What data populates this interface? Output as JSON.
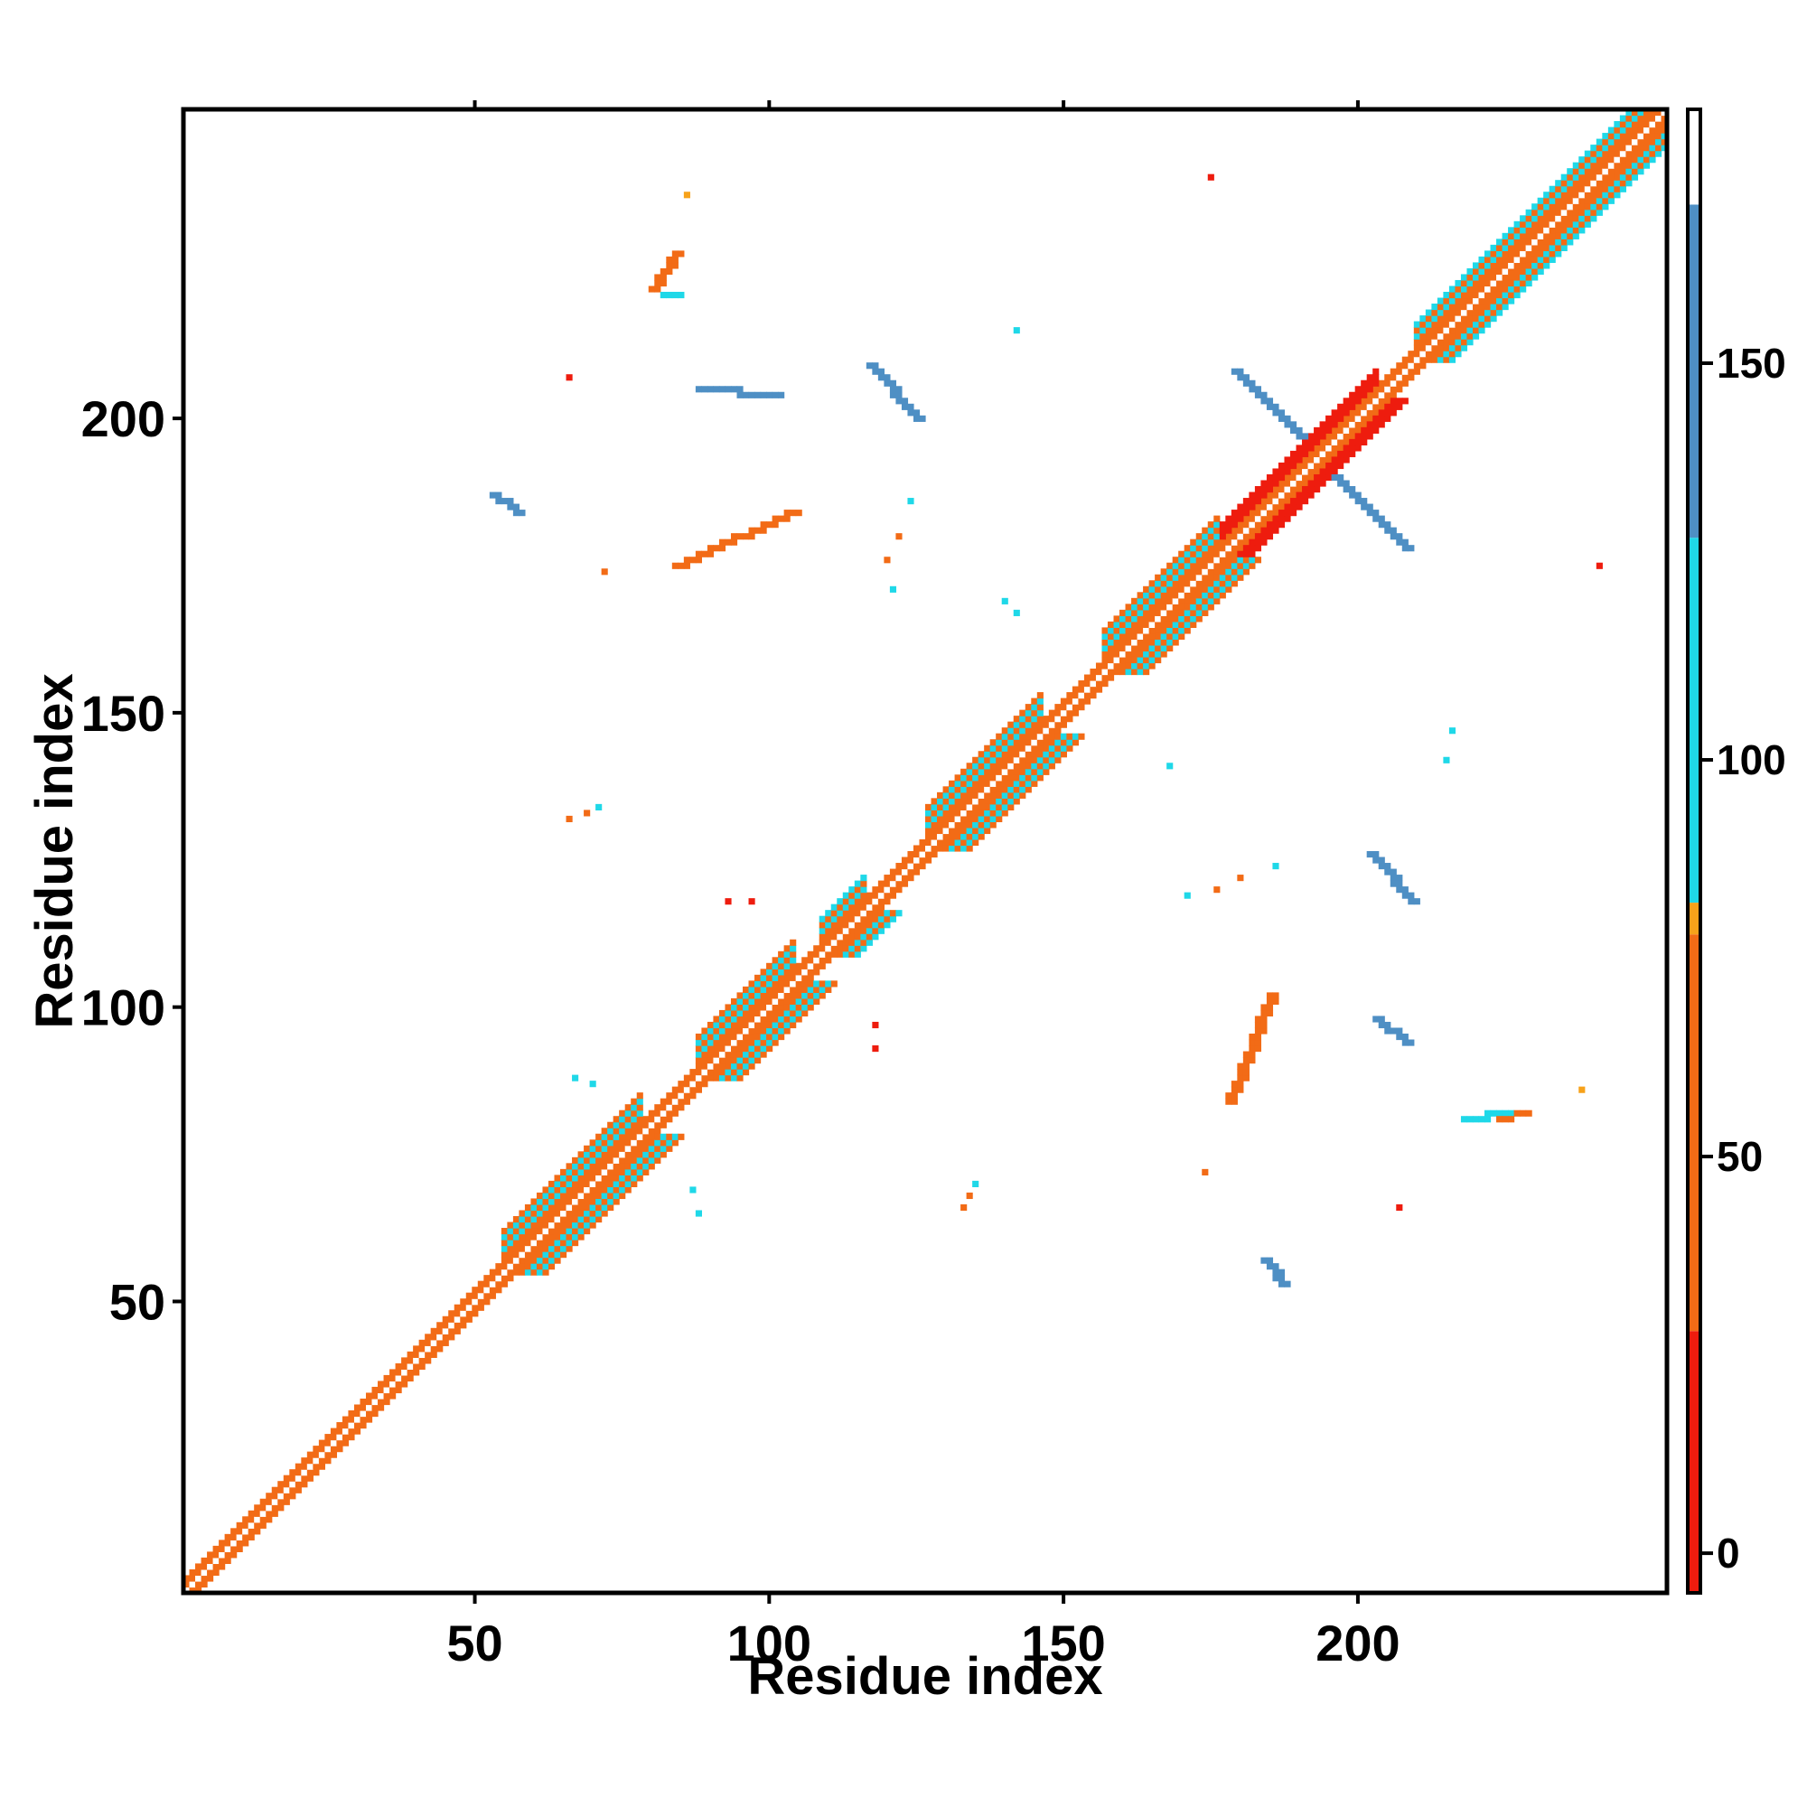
{
  "chart_data": {
    "type": "heatmap",
    "title": "",
    "xlabel": "Residue index",
    "ylabel": "Residue index",
    "x_range": [
      1,
      252
    ],
    "y_range": [
      1,
      252
    ],
    "x_ticks": [
      50,
      100,
      150,
      200
    ],
    "y_ticks": [
      50,
      100,
      150,
      200
    ],
    "grid": false,
    "symmetric": true,
    "colorbar": {
      "range": [
        -5,
        182
      ],
      "ticks": [
        0,
        50,
        100,
        150
      ],
      "bins": [
        {
          "from": -5,
          "to": 28,
          "color": "#ee1c0e"
        },
        {
          "from": 28,
          "to": 78,
          "color": "#f26b16"
        },
        {
          "from": 78,
          "to": 82,
          "color": "#f7a21a"
        },
        {
          "from": 82,
          "to": 128,
          "color": "#1fd8e8"
        },
        {
          "from": 128,
          "to": 170,
          "color": "#4e8fc4"
        },
        {
          "from": 170,
          "to": 182,
          "color": "#ffffff"
        }
      ]
    },
    "diagonal": {
      "from": 1,
      "to": 252,
      "value": 60
    },
    "near_diagonal_bands": [
      {
        "from": 55,
        "to": 78,
        "value": 95,
        "width": 4
      },
      {
        "from": 88,
        "to": 104,
        "value": 95,
        "width": 4
      },
      {
        "from": 109,
        "to": 116,
        "value": 110,
        "width": 3
      },
      {
        "from": 127,
        "to": 146,
        "value": 95,
        "width": 4
      },
      {
        "from": 157,
        "to": 176,
        "value": 95,
        "width": 4
      },
      {
        "from": 176,
        "to": 203,
        "value": 10,
        "width": 2
      },
      {
        "from": 210,
        "to": 250,
        "value": 100,
        "width": 3
      }
    ],
    "contacts": [
      {
        "x0": 179,
        "y0": 208,
        "x1": 208,
        "y1": 178,
        "value": 150,
        "width": 2
      },
      {
        "x0": 117,
        "y0": 209,
        "x1": 125,
        "y1": 200,
        "value": 150,
        "width": 2
      },
      {
        "x0": 202,
        "y0": 126,
        "x1": 209,
        "y1": 118,
        "value": 150,
        "width": 2
      },
      {
        "x0": 84,
        "y0": 175,
        "x1": 104,
        "y1": 184,
        "value": 40,
        "width": 2
      },
      {
        "x0": 178,
        "y0": 84,
        "x1": 185,
        "y1": 102,
        "value": 40,
        "width": 2
      },
      {
        "x0": 53,
        "y0": 187,
        "x1": 57,
        "y1": 184,
        "value": 150,
        "width": 2
      },
      {
        "x0": 184,
        "y0": 57,
        "x1": 187,
        "y1": 53,
        "value": 150,
        "width": 2
      },
      {
        "x0": 80,
        "y0": 222,
        "x1": 84,
        "y1": 228,
        "value": 40,
        "width": 2
      },
      {
        "x0": 82,
        "y0": 221,
        "x1": 84,
        "y1": 221,
        "value": 100,
        "width": 2
      },
      {
        "x0": 88,
        "y0": 205,
        "x1": 101,
        "y1": 204,
        "value": 140,
        "width": 2
      },
      {
        "x0": 218,
        "y0": 81,
        "x1": 225,
        "y1": 82,
        "value": 100,
        "width": 2
      },
      {
        "x0": 224,
        "y0": 81,
        "x1": 228,
        "y1": 82,
        "value": 40,
        "width": 2
      },
      {
        "x0": 203,
        "y0": 98,
        "x1": 208,
        "y1": 94,
        "value": 140,
        "width": 2
      },
      {
        "x0": 1,
        "y0": 1,
        "x1": 1,
        "y1": 1,
        "value": 10,
        "width": 1
      }
    ],
    "scatter": [
      {
        "x": 66,
        "y": 132,
        "value": 40
      },
      {
        "x": 69,
        "y": 133,
        "value": 40
      },
      {
        "x": 71,
        "y": 134,
        "value": 100
      },
      {
        "x": 133,
        "y": 66,
        "value": 40
      },
      {
        "x": 134,
        "y": 68,
        "value": 40
      },
      {
        "x": 135,
        "y": 70,
        "value": 100
      },
      {
        "x": 120,
        "y": 176,
        "value": 40
      },
      {
        "x": 122,
        "y": 180,
        "value": 40
      },
      {
        "x": 124,
        "y": 186,
        "value": 100
      },
      {
        "x": 176,
        "y": 120,
        "value": 40
      },
      {
        "x": 180,
        "y": 122,
        "value": 40
      },
      {
        "x": 186,
        "y": 124,
        "value": 100
      },
      {
        "x": 121,
        "y": 171,
        "value": 100
      },
      {
        "x": 171,
        "y": 119,
        "value": 100
      },
      {
        "x": 140,
        "y": 169,
        "value": 100
      },
      {
        "x": 142,
        "y": 167,
        "value": 100
      },
      {
        "x": 168,
        "y": 141,
        "value": 100
      },
      {
        "x": 67,
        "y": 88,
        "value": 100
      },
      {
        "x": 70,
        "y": 87,
        "value": 100
      },
      {
        "x": 87,
        "y": 69,
        "value": 100
      },
      {
        "x": 88,
        "y": 65,
        "value": 100
      },
      {
        "x": 215,
        "y": 142,
        "value": 100
      },
      {
        "x": 216,
        "y": 147,
        "value": 100
      },
      {
        "x": 142,
        "y": 215,
        "value": 100
      },
      {
        "x": 175,
        "y": 241,
        "value": 5
      },
      {
        "x": 241,
        "y": 175,
        "value": 5
      },
      {
        "x": 66,
        "y": 207,
        "value": 5
      },
      {
        "x": 207,
        "y": 66,
        "value": 5
      },
      {
        "x": 93,
        "y": 118,
        "value": 5
      },
      {
        "x": 118,
        "y": 93,
        "value": 5
      },
      {
        "x": 118,
        "y": 97,
        "value": 5
      },
      {
        "x": 97,
        "y": 118,
        "value": 5
      },
      {
        "x": 238,
        "y": 86,
        "value": 80
      },
      {
        "x": 86,
        "y": 238,
        "value": 80
      },
      {
        "x": 174,
        "y": 72,
        "value": 40
      },
      {
        "x": 72,
        "y": 174,
        "value": 40
      }
    ]
  }
}
